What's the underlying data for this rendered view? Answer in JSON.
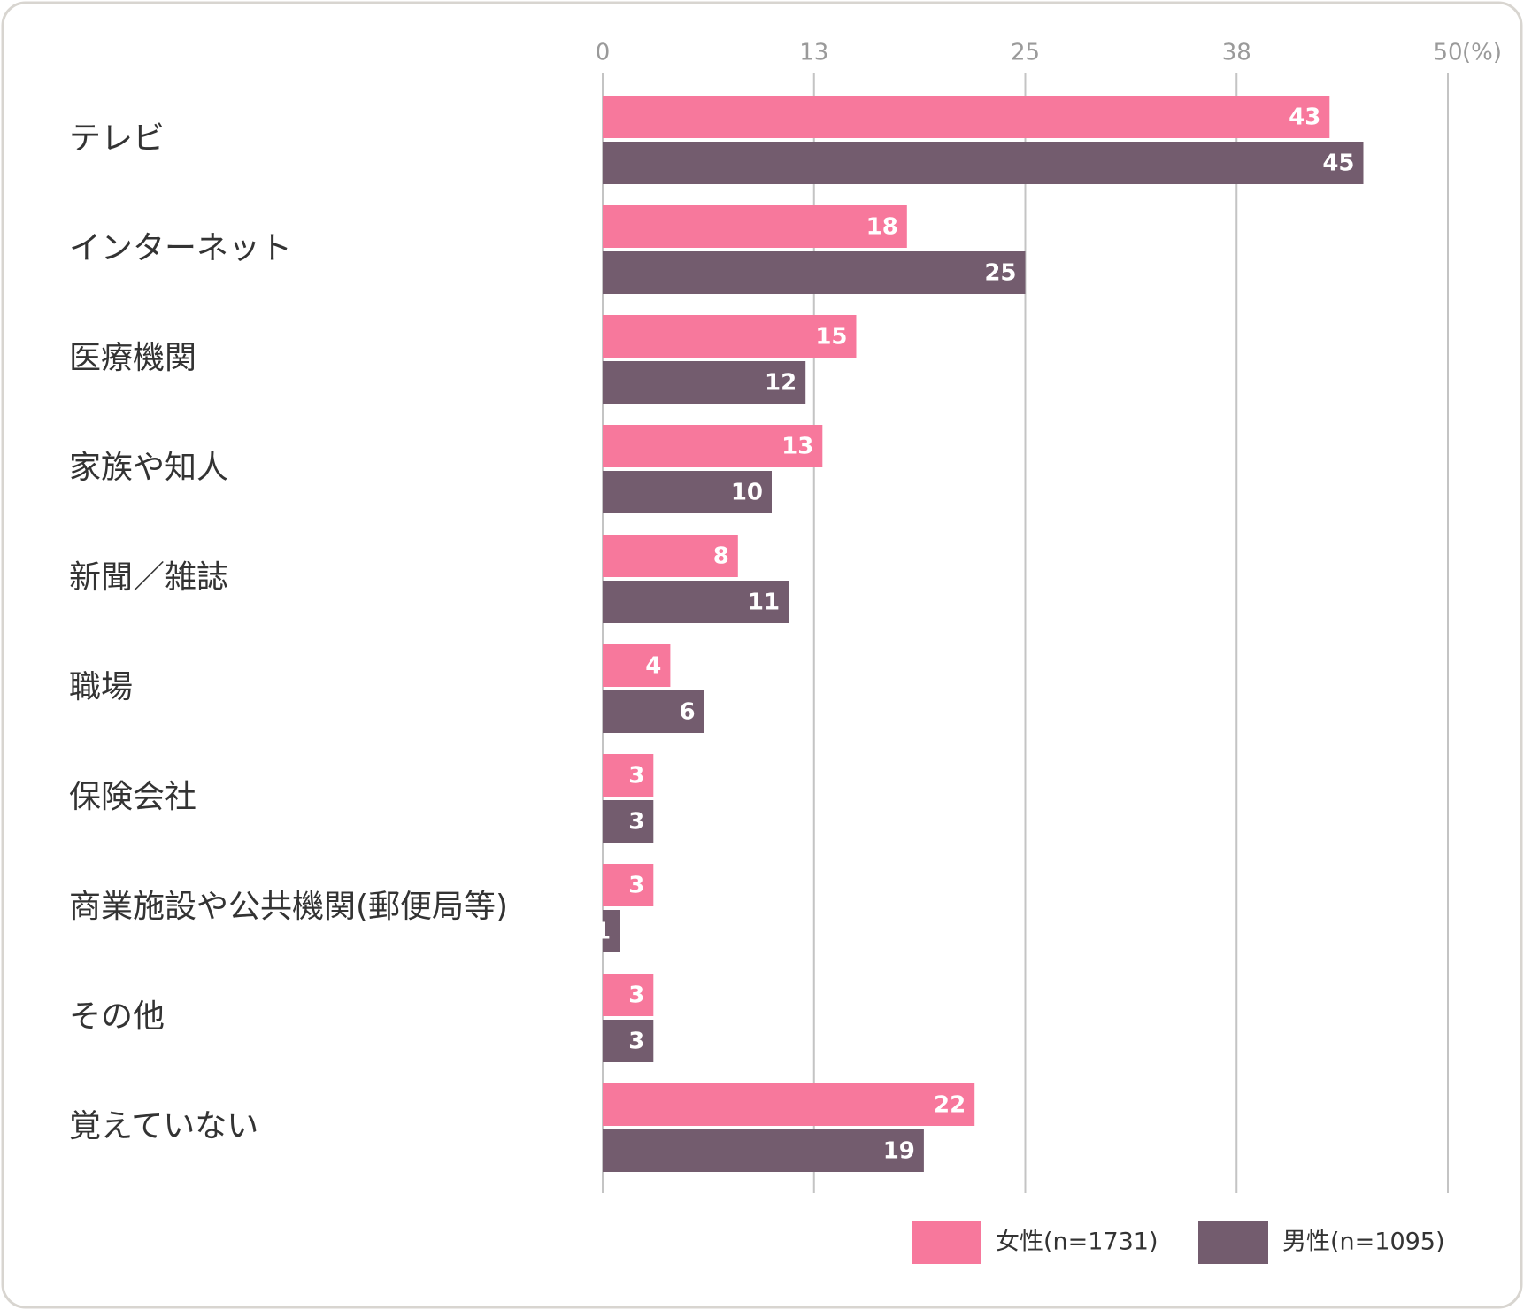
{
  "chart_data": {
    "type": "bar",
    "orientation": "horizontal",
    "categories": [
      "テレビ",
      "インターネット",
      "医療機関",
      "家族や知人",
      "新聞／雑誌",
      "職場",
      "保険会社",
      "商業施設や公共機関(郵便局等)",
      "その他",
      "覚えていない"
    ],
    "series": [
      {
        "name": "女性(n=1731)",
        "color": "#f7789c",
        "values": [
          43,
          18,
          15,
          13,
          8,
          4,
          3,
          3,
          3,
          22
        ]
      },
      {
        "name": "男性(n=1095)",
        "color": "#735c6e",
        "values": [
          45,
          25,
          12,
          10,
          11,
          6,
          3,
          1,
          3,
          19
        ]
      }
    ],
    "xlim": [
      0,
      50
    ],
    "xticks": [
      0,
      {
        "value": 12.5,
        "label": "13"
      },
      25,
      {
        "value": 37.5,
        "label": "38"
      },
      50
    ],
    "x_unit": "(%)",
    "grid": true,
    "legend": "bottom-right"
  }
}
